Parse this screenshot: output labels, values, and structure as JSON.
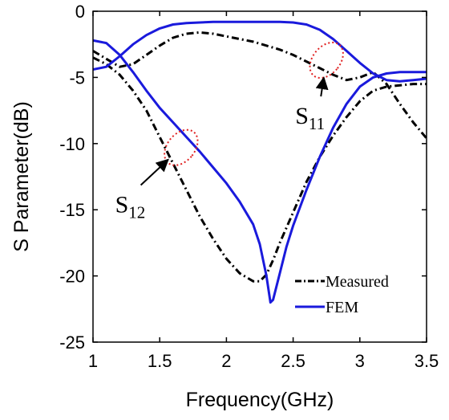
{
  "chart_data": {
    "type": "line",
    "xlabel": "Frequency(GHz)",
    "ylabel": "S Parameter(dB)",
    "xlim": [
      1,
      3.5
    ],
    "ylim": [
      -25,
      0
    ],
    "x_ticks": [
      "1",
      "1.5",
      "2",
      "2.5",
      "3",
      "3.5"
    ],
    "y_ticks": [
      "0",
      "-5",
      "-10",
      "-15",
      "-20",
      "-25"
    ],
    "grid": false,
    "legend_position": "bottom-right",
    "series": [
      {
        "name": "Measured",
        "parameter": "S11",
        "color": "#000000",
        "style": "dash-dot",
        "x": [
          1.0,
          1.1,
          1.2,
          1.3,
          1.4,
          1.5,
          1.6,
          1.7,
          1.8,
          1.9,
          2.0,
          2.1,
          2.2,
          2.3,
          2.4,
          2.5,
          2.6,
          2.7,
          2.8,
          2.9,
          3.0,
          3.1,
          3.2,
          3.3,
          3.4,
          3.5
        ],
        "y": [
          -3.0,
          -3.6,
          -4.2,
          -4.0,
          -3.3,
          -2.6,
          -2.0,
          -1.7,
          -1.6,
          -1.7,
          -1.9,
          -2.1,
          -2.3,
          -2.6,
          -2.9,
          -3.3,
          -3.8,
          -4.3,
          -4.8,
          -5.2,
          -5.0,
          -4.6,
          -5.5,
          -7.0,
          -8.4,
          -9.6
        ]
      },
      {
        "name": "Measured",
        "parameter": "S12",
        "color": "#000000",
        "style": "dash-dot",
        "x": [
          1.0,
          1.1,
          1.2,
          1.3,
          1.4,
          1.5,
          1.6,
          1.7,
          1.8,
          1.9,
          2.0,
          2.1,
          2.2,
          2.25,
          2.3,
          2.35,
          2.4,
          2.5,
          2.6,
          2.7,
          2.8,
          2.9,
          3.0,
          3.1,
          3.2,
          3.3,
          3.4,
          3.5
        ],
        "y": [
          -3.5,
          -4.0,
          -4.8,
          -6.0,
          -7.5,
          -9.5,
          -11.5,
          -13.5,
          -15.5,
          -17.2,
          -18.7,
          -19.8,
          -20.4,
          -20.4,
          -19.9,
          -18.8,
          -17.5,
          -15.2,
          -12.9,
          -11.0,
          -9.4,
          -8.0,
          -6.8,
          -6.0,
          -5.7,
          -5.6,
          -5.5,
          -5.5
        ]
      },
      {
        "name": "FEM",
        "parameter": "S11",
        "color": "#1a1adc",
        "style": "solid",
        "x": [
          1.0,
          1.1,
          1.2,
          1.3,
          1.4,
          1.5,
          1.6,
          1.7,
          1.8,
          1.9,
          2.0,
          2.1,
          2.2,
          2.3,
          2.4,
          2.5,
          2.6,
          2.7,
          2.8,
          2.9,
          3.0,
          3.1,
          3.2,
          3.3,
          3.4,
          3.5
        ],
        "y": [
          -4.4,
          -4.2,
          -3.4,
          -2.5,
          -1.8,
          -1.3,
          -1.0,
          -0.9,
          -0.85,
          -0.8,
          -0.8,
          -0.8,
          -0.8,
          -0.8,
          -0.8,
          -0.85,
          -1.0,
          -1.4,
          -2.1,
          -3.0,
          -3.9,
          -4.7,
          -5.2,
          -5.3,
          -5.2,
          -5.1
        ]
      },
      {
        "name": "FEM",
        "parameter": "S12",
        "color": "#1a1adc",
        "style": "solid",
        "x": [
          1.0,
          1.1,
          1.2,
          1.3,
          1.4,
          1.5,
          1.6,
          1.7,
          1.8,
          1.9,
          2.0,
          2.1,
          2.2,
          2.25,
          2.3,
          2.33,
          2.35,
          2.4,
          2.45,
          2.5,
          2.6,
          2.7,
          2.8,
          2.9,
          3.0,
          3.1,
          3.2,
          3.3,
          3.4,
          3.5
        ],
        "y": [
          -2.2,
          -2.4,
          -3.3,
          -4.6,
          -6.0,
          -7.3,
          -8.4,
          -9.5,
          -10.6,
          -11.8,
          -13.0,
          -14.4,
          -16.1,
          -17.6,
          -20.0,
          -22.0,
          -21.8,
          -19.8,
          -17.8,
          -16.2,
          -13.5,
          -11.0,
          -8.8,
          -7.0,
          -5.7,
          -5.0,
          -4.7,
          -4.6,
          -4.6,
          -4.6
        ]
      }
    ],
    "legend": [
      {
        "label": "Measured",
        "color": "#000000",
        "style": "dash-dot"
      },
      {
        "label": "FEM",
        "color": "#1a1adc",
        "style": "solid"
      }
    ],
    "annotations": [
      {
        "base": "S",
        "sub": "11",
        "color": "#000000",
        "circle_color": "#e02020",
        "target": [
          2.75,
          -3.7
        ],
        "text_at": [
          2.6,
          -8.5
        ]
      },
      {
        "base": "S",
        "sub": "12",
        "color": "#000000",
        "circle_color": "#e02020",
        "target": [
          1.66,
          -10.3
        ],
        "text_at": [
          1.25,
          -15.2
        ]
      }
    ]
  }
}
